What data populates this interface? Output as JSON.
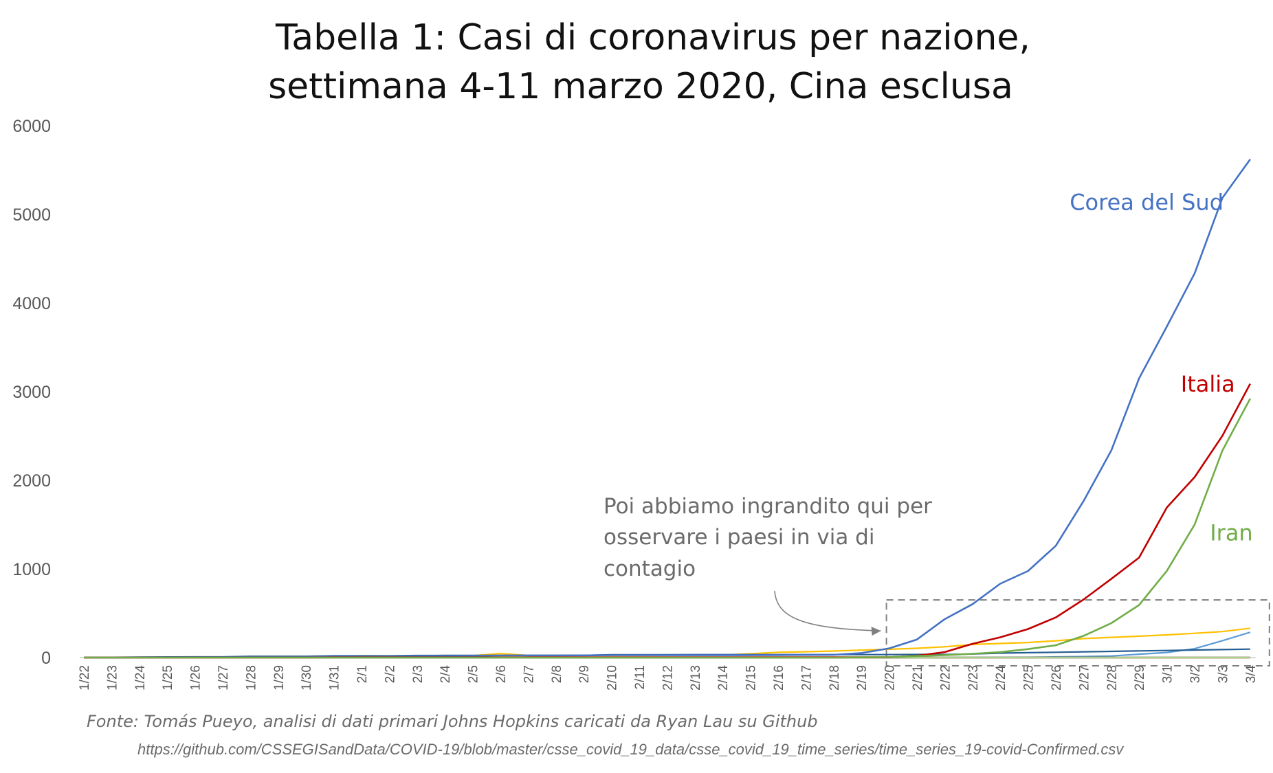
{
  "chart_data": {
    "type": "line",
    "title_lines": [
      "Tabella 1: Casi di coronavirus per nazione,",
      "settimana 4-11 marzo 2020, Cina esclusa"
    ],
    "xlabel": "",
    "ylabel": "",
    "ylim": [
      0,
      6000
    ],
    "yticks": [
      0,
      1000,
      2000,
      3000,
      4000,
      5000,
      6000
    ],
    "grid": false,
    "categories": [
      "1/22",
      "1/23",
      "1/24",
      "1/25",
      "1/26",
      "1/27",
      "1/28",
      "1/29",
      "1/30",
      "1/31",
      "2/1",
      "2/2",
      "2/3",
      "2/4",
      "2/5",
      "2/6",
      "2/7",
      "2/8",
      "2/9",
      "2/10",
      "2/11",
      "2/12",
      "2/13",
      "2/14",
      "2/15",
      "2/16",
      "2/17",
      "2/18",
      "2/19",
      "2/20",
      "2/21",
      "2/22",
      "2/23",
      "2/24",
      "2/25",
      "2/26",
      "2/27",
      "2/28",
      "2/29",
      "3/1",
      "3/2",
      "3/3",
      "3/4"
    ],
    "series": [
      {
        "name": "Corea del Sud",
        "color": "#4472c4",
        "labeled": true,
        "values": [
          1,
          1,
          2,
          2,
          3,
          4,
          4,
          4,
          4,
          11,
          12,
          15,
          15,
          16,
          19,
          23,
          24,
          24,
          25,
          27,
          28,
          28,
          28,
          28,
          28,
          29,
          30,
          31,
          51,
          104,
          204,
          433,
          602,
          833,
          977,
          1261,
          1766,
          2337,
          3150,
          3736,
          4335,
          5186,
          5621
        ]
      },
      {
        "name": "Italia",
        "color": "#c00000",
        "labeled": true,
        "values": [
          0,
          0,
          0,
          0,
          0,
          0,
          0,
          0,
          0,
          2,
          2,
          2,
          2,
          2,
          2,
          2,
          3,
          3,
          3,
          3,
          3,
          3,
          3,
          3,
          3,
          3,
          3,
          3,
          3,
          3,
          20,
          62,
          155,
          229,
          322,
          453,
          655,
          888,
          1128,
          1694,
          2036,
          2502,
          3089
        ]
      },
      {
        "name": "Iran",
        "color": "#70ad47",
        "labeled": true,
        "values": [
          0,
          0,
          0,
          0,
          0,
          0,
          0,
          0,
          0,
          0,
          0,
          0,
          0,
          0,
          0,
          0,
          0,
          0,
          0,
          0,
          0,
          0,
          0,
          0,
          0,
          0,
          0,
          0,
          2,
          5,
          18,
          28,
          43,
          61,
          95,
          139,
          245,
          388,
          593,
          978,
          1501,
          2336,
          2922
        ]
      },
      {
        "name": "",
        "color": "#ffc000",
        "labeled": false,
        "values": [
          2,
          1,
          2,
          2,
          4,
          4,
          7,
          7,
          11,
          15,
          20,
          20,
          20,
          22,
          22,
          45,
          25,
          25,
          26,
          26,
          26,
          28,
          28,
          29,
          43,
          59,
          66,
          74,
          84,
          94,
          105,
          122,
          147,
          159,
          170,
          189,
          214,
          228,
          241,
          256,
          274,
          293,
          331
        ]
      },
      {
        "name": "",
        "color": "#5b9bd5",
        "labeled": false,
        "values": [
          0,
          0,
          0,
          0,
          0,
          0,
          0,
          0,
          0,
          0,
          0,
          0,
          0,
          0,
          0,
          0,
          0,
          0,
          0,
          0,
          0,
          0,
          0,
          0,
          0,
          0,
          0,
          0,
          0,
          0,
          0,
          0,
          0,
          1,
          3,
          8,
          12,
          18,
          38,
          57,
          100,
          191,
          285
        ]
      },
      {
        "name": "",
        "color": "#255e91",
        "labeled": false,
        "values": [
          2,
          3,
          5,
          7,
          8,
          8,
          14,
          14,
          14,
          19,
          19,
          19,
          23,
          24,
          24,
          24,
          24,
          25,
          25,
          32,
          32,
          32,
          33,
          33,
          33,
          33,
          33,
          33,
          33,
          33,
          35,
          35,
          40,
          50,
          55,
          60,
          65,
          70,
          75,
          80,
          85,
          90,
          95
        ]
      },
      {
        "name": "",
        "color": "#843c0c",
        "labeled": false,
        "values": [
          0,
          0,
          0,
          0,
          0,
          0,
          0,
          0,
          0,
          0,
          0,
          0,
          0,
          0,
          0,
          0,
          0,
          0,
          0,
          0,
          0,
          0,
          0,
          0,
          0,
          0,
          0,
          0,
          0,
          0,
          0,
          0,
          0,
          0,
          0,
          0,
          0,
          0,
          0,
          0,
          0,
          0,
          0
        ]
      },
      {
        "name": "",
        "color": "#3a3a3a",
        "labeled": false,
        "values": [
          0,
          0,
          0,
          0,
          0,
          0,
          0,
          0,
          0,
          0,
          0,
          0,
          0,
          0,
          0,
          0,
          0,
          0,
          0,
          0,
          0,
          0,
          0,
          0,
          0,
          0,
          0,
          0,
          0,
          0,
          0,
          0,
          0,
          0,
          0,
          0,
          0,
          0,
          0,
          0,
          0,
          0,
          0
        ]
      },
      {
        "name": "",
        "color": "#9e480e",
        "labeled": false,
        "values": [
          0,
          0,
          0,
          0,
          0,
          0,
          0,
          0,
          0,
          0,
          0,
          0,
          0,
          0,
          0,
          0,
          0,
          0,
          0,
          0,
          0,
          0,
          0,
          0,
          0,
          0,
          0,
          0,
          0,
          0,
          0,
          0,
          0,
          0,
          0,
          0,
          0,
          0,
          0,
          0,
          0,
          0,
          0
        ]
      },
      {
        "name": "",
        "color": "#a9d18e",
        "labeled": false,
        "values": [
          0,
          0,
          0,
          0,
          0,
          0,
          0,
          0,
          0,
          0,
          0,
          0,
          0,
          0,
          0,
          0,
          0,
          0,
          0,
          0,
          0,
          0,
          0,
          0,
          0,
          0,
          0,
          0,
          0,
          0,
          0,
          0,
          0,
          0,
          0,
          0,
          0,
          0,
          0,
          0,
          0,
          0,
          0
        ]
      }
    ],
    "annotation": {
      "lines": [
        "Poi abbiamo ingrandito qui per",
        "osservare i paesi in via di",
        "contagio"
      ],
      "zoom_box": {
        "x_from": "2/20",
        "x_to": "3/4",
        "y_from": 0,
        "y_to": 650
      }
    },
    "source": "Fonte: Tomás Pueyo, analisi di dati primari Johns Hopkins caricati da Ryan Lau su Github",
    "url": "https://github.com/CSSEGISandData/COVID-19/blob/master/csse_covid_19_data/csse_covid_19_time_series/time_series_19-covid-Confirmed.csv"
  }
}
